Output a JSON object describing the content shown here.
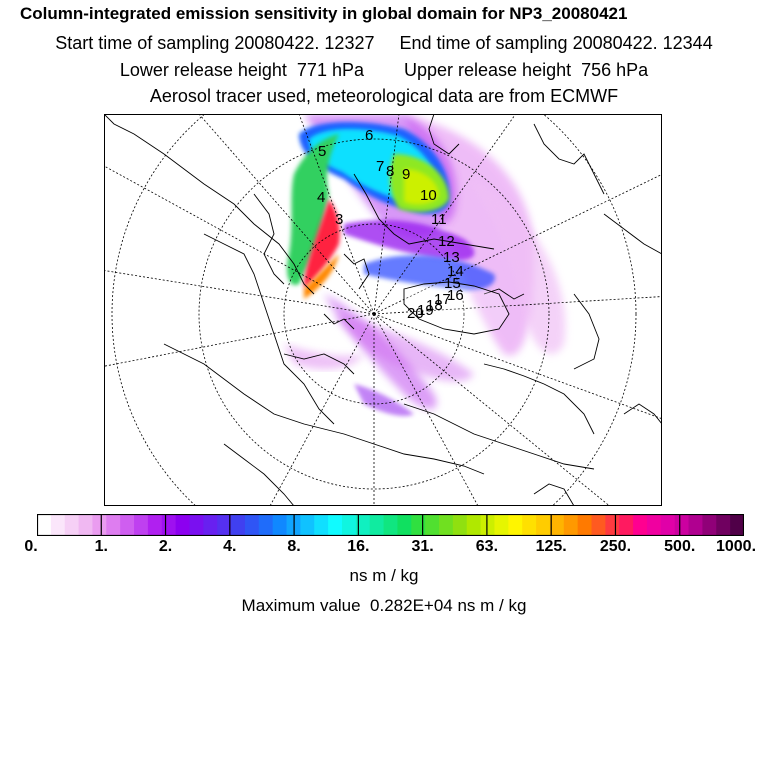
{
  "header": {
    "title": "Column-integrated emission sensitivity in global domain for NP3_20080421",
    "line1": "Start time of sampling 20080422. 12327     End time of sampling 20080422. 12344",
    "line2": "Lower release height  771 hPa        Upper release height  756 hPa",
    "line3": "Aerosol tracer used, meteorological data are from ECMWF"
  },
  "map": {
    "trajectory_labels": [
      "3",
      "4",
      "5",
      "6",
      "7",
      "8",
      "9",
      "10",
      "11",
      "12",
      "13",
      "14",
      "15",
      "16",
      "17",
      "18",
      "19",
      "20"
    ]
  },
  "colorbar": {
    "tick_labels": [
      "0.",
      "1.",
      "2.",
      "4.",
      "8.",
      "16.",
      "31.",
      "63.",
      "125.",
      "250.",
      "500.",
      "1000."
    ],
    "colors": [
      "#ffffff",
      "#fbe6fb",
      "#f6d0f6",
      "#f0b8f2",
      "#ea9cf0",
      "#de7df0",
      "#cf5ef0",
      "#bf40f0",
      "#b020f0",
      "#9e10f0",
      "#8c00f0",
      "#7a10f0",
      "#6820f0",
      "#5530f0",
      "#4040f0",
      "#2f55f5",
      "#1f6cfa",
      "#1088ff",
      "#10a5ff",
      "#10c2ff",
      "#10dfff",
      "#10fbff",
      "#10f5e0",
      "#10f0c0",
      "#10eba0",
      "#10e680",
      "#10e060",
      "#30e040",
      "#50e030",
      "#70e020",
      "#90e010",
      "#b0e800",
      "#ccef00",
      "#e6f500",
      "#fff500",
      "#ffe000",
      "#ffcc00",
      "#ffb400",
      "#ff9900",
      "#ff7a00",
      "#ff5a20",
      "#ff3a40",
      "#ff1a60",
      "#ff0090",
      "#f000a0",
      "#e000a8",
      "#cc00a0",
      "#b00090",
      "#900078",
      "#700060",
      "#500048"
    ]
  },
  "units": "ns m / kg",
  "max_value": "Maximum value  0.282E+04 ns m / kg"
}
